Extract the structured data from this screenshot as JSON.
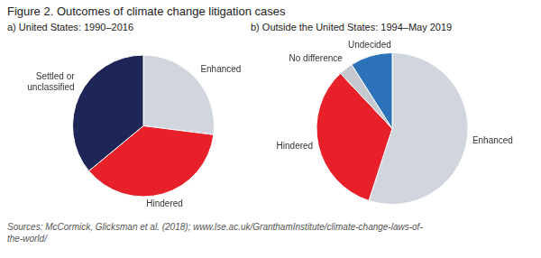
{
  "chart_data": [
    {
      "type": "pie",
      "title": "Figure 2. Outcomes of climate change litigation cases",
      "subtitle": "a)  United States: 1990–2016",
      "categories": [
        "Enhanced",
        "Hindered",
        "Settled or\nunclassified"
      ],
      "values": [
        27,
        37,
        36
      ],
      "colors": [
        "#d0d5de",
        "#e8202a",
        "#1e2657"
      ],
      "annotations": [
        "Sources: McCormick, Glicksman et al. (2018); www.lse.ac.uk/GranthamInstitute/climate-change-laws-of-\nthe-world/"
      ]
    },
    {
      "type": "pie",
      "subtitle": "b)  Outside the United States: 1994–May 2019",
      "categories": [
        "Enhanced",
        "Hindered",
        "No difference",
        "Undecided"
      ],
      "values": [
        55,
        33,
        3,
        9
      ],
      "colors": [
        "#d0d5de",
        "#e8202a",
        "#c5c8ce",
        "#2b72b8"
      ]
    }
  ]
}
